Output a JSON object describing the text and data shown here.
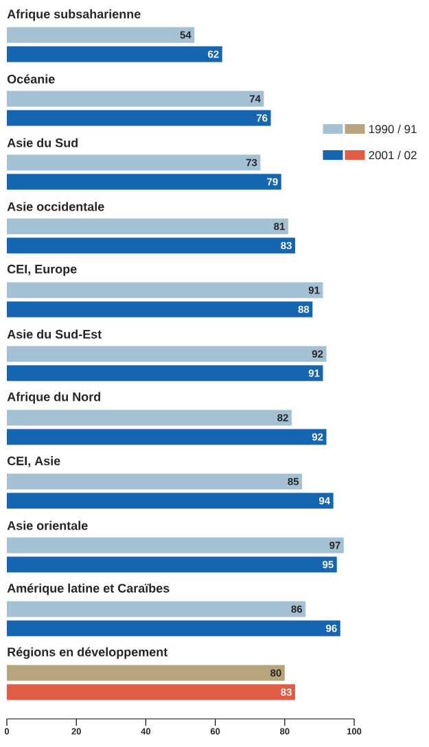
{
  "chart_data": {
    "type": "bar",
    "orientation": "horizontal",
    "categories": [
      "Afrique subsaharienne",
      "Océanie",
      "Asie du Sud",
      "Asie occidentale",
      "CEI, Europe",
      "Asie du Sud-Est",
      "Afrique du Nord",
      "CEI, Asie",
      "Asie orientale",
      "Amérique latine et Caraïbes",
      "Régions en développement"
    ],
    "series": [
      {
        "name": "1990 / 91",
        "color": "#a3c1d3",
        "colors": [
          "#a3c1d3",
          "#a3c1d3",
          "#a3c1d3",
          "#a3c1d3",
          "#a3c1d3",
          "#a3c1d3",
          "#a3c1d3",
          "#a3c1d3",
          "#a3c1d3",
          "#a3c1d3",
          "#b8a47a"
        ],
        "values": [
          54,
          74,
          73,
          81,
          91,
          92,
          82,
          85,
          97,
          86,
          80
        ]
      },
      {
        "name": "2001 / 02",
        "color": "#1565b0",
        "colors": [
          "#1565b0",
          "#1565b0",
          "#1565b0",
          "#1565b0",
          "#1565b0",
          "#1565b0",
          "#1565b0",
          "#1565b0",
          "#1565b0",
          "#1565b0",
          "#e05c45"
        ],
        "values": [
          62,
          76,
          79,
          83,
          88,
          91,
          92,
          94,
          95,
          96,
          83
        ]
      }
    ],
    "xlim": [
      0,
      100
    ],
    "xticks": [
      0,
      20,
      40,
      60,
      80,
      100
    ],
    "data_labels": true,
    "legend": "right"
  }
}
